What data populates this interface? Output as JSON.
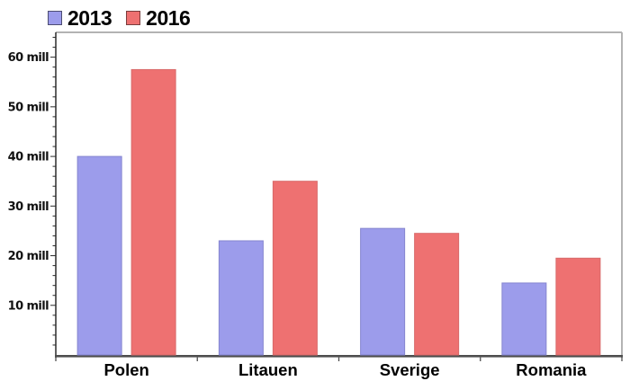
{
  "chart_data": {
    "type": "bar",
    "title": "",
    "unit": "mill",
    "categories": [
      "Polen",
      "Litauen",
      "Sverige",
      "Romania"
    ],
    "series": [
      {
        "name": "2013",
        "values": [
          40,
          23,
          25.5,
          14.5
        ],
        "fill": "#9c9ceb",
        "edge": "#8585cf",
        "swatch_edge": "#4d4d73"
      },
      {
        "name": "2016",
        "values": [
          57.5,
          35,
          24.5,
          19.5
        ],
        "fill": "#ee7171",
        "edge": "#d86a6a",
        "swatch_edge": "#7a3d3d"
      }
    ],
    "y_ticks": [
      10,
      20,
      30,
      40,
      50,
      60
    ],
    "y_tick_labels": [
      "10 mill",
      "20 mill",
      "30 mill",
      "40 mill",
      "50 mill",
      "60 mill"
    ],
    "ylim": [
      0,
      65
    ],
    "minor_tick_step": 2,
    "grid": false,
    "legend_position": "top-left"
  },
  "theme": {
    "background": "#ffffff",
    "axis_color": "#2b2b2b",
    "bottom_axis_color": "#4d4d4d",
    "plot_border_color": "#b3b3b3",
    "label_color": "#111111"
  }
}
